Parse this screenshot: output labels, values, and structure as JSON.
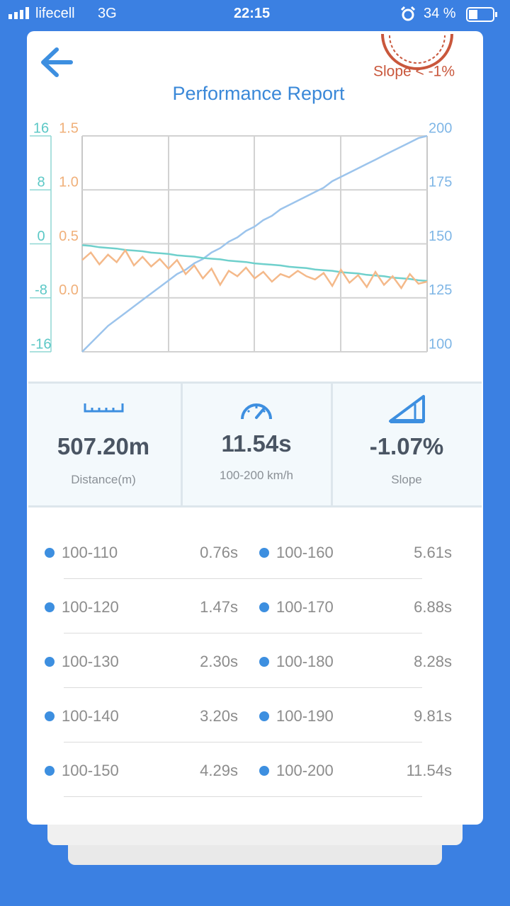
{
  "status_bar": {
    "carrier": "lifecell",
    "network": "3G",
    "time": "22:15",
    "battery": "34 %"
  },
  "header": {
    "badge": "Slope < -1%",
    "title": "Performance Report"
  },
  "chart_data": {
    "type": "line",
    "grid": true,
    "ylim": [
      -16,
      16
    ],
    "yticks": [
      -16,
      -8,
      0,
      8,
      16
    ],
    "y2lim": [
      100,
      200
    ],
    "y2ticks": [
      100,
      125,
      150,
      175,
      200
    ],
    "y3lim": [
      -0.5,
      1.5
    ],
    "y3ticks": [
      {
        "value": 0,
        "label": "0.0"
      },
      0.5,
      {
        "value": 1,
        "label": "1.0"
      },
      1.5
    ],
    "series": [
      {
        "color": "#9cc4ec",
        "axis": "y2",
        "values": [
          100,
          104,
          108,
          112,
          115,
          118,
          121,
          124,
          127,
          130,
          133,
          136,
          138,
          141,
          143,
          146,
          148,
          151,
          153,
          156,
          158,
          161,
          163,
          166,
          168,
          170,
          172,
          174,
          176,
          179,
          181,
          183,
          185,
          187,
          189,
          191,
          193,
          195,
          197,
          199,
          200
        ]
      },
      {
        "color": "#6fd0cc",
        "axis": "y",
        "values": [
          -0.2,
          -0.3,
          -0.5,
          -0.6,
          -0.7,
          -0.9,
          -1.0,
          -1.1,
          -1.3,
          -1.4,
          -1.5,
          -1.7,
          -1.8,
          -1.9,
          -2.1,
          -2.2,
          -2.3,
          -2.5,
          -2.6,
          -2.7,
          -2.9,
          -3.0,
          -3.1,
          -3.2,
          -3.4,
          -3.5,
          -3.6,
          -3.8,
          -3.9,
          -4.0,
          -4.2,
          -4.3,
          -4.4,
          -4.6,
          -4.7,
          -4.8,
          -5.0,
          -5.1,
          -5.2,
          -5.4,
          -5.5
        ]
      },
      {
        "color": "#f4b98a",
        "axis": "y3",
        "values": [
          0.35,
          0.42,
          0.31,
          0.4,
          0.33,
          0.44,
          0.3,
          0.38,
          0.29,
          0.36,
          0.27,
          0.35,
          0.22,
          0.3,
          0.18,
          0.27,
          0.12,
          0.25,
          0.2,
          0.28,
          0.18,
          0.24,
          0.15,
          0.22,
          0.19,
          0.25,
          0.2,
          0.17,
          0.23,
          0.11,
          0.26,
          0.14,
          0.21,
          0.1,
          0.24,
          0.12,
          0.2,
          0.09,
          0.22,
          0.13,
          0.15
        ]
      }
    ]
  },
  "stats": [
    {
      "value": "507.20m",
      "label": "Distance(m)"
    },
    {
      "value": "11.54s",
      "label": "100-200 km/h"
    },
    {
      "value": "-1.07%",
      "label": "Slope"
    }
  ],
  "splits": [
    {
      "range": "100-110",
      "time": "0.76s"
    },
    {
      "range": "100-120",
      "time": "1.47s"
    },
    {
      "range": "100-130",
      "time": "2.30s"
    },
    {
      "range": "100-140",
      "time": "3.20s"
    },
    {
      "range": "100-150",
      "time": "4.29s"
    },
    {
      "range": "100-160",
      "time": "5.61s"
    },
    {
      "range": "100-170",
      "time": "6.88s"
    },
    {
      "range": "100-180",
      "time": "8.28s"
    },
    {
      "range": "100-190",
      "time": "9.81s"
    },
    {
      "range": "100-200",
      "time": "11.54s"
    }
  ]
}
